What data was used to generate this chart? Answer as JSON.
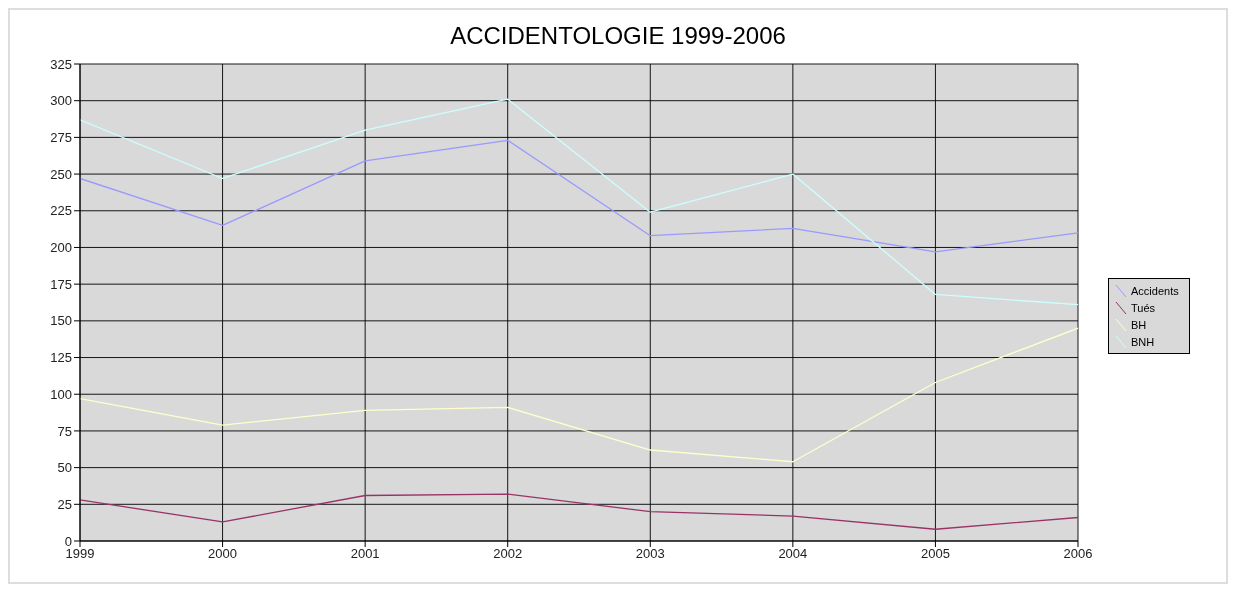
{
  "chart_data": {
    "type": "line",
    "title": "ACCIDENTOLOGIE 1999-2006",
    "x": [
      1999,
      2000,
      2001,
      2002,
      2003,
      2004,
      2005,
      2006
    ],
    "series": [
      {
        "name": "Accidents",
        "color": "#9999ff",
        "values": [
          247,
          215,
          259,
          273,
          208,
          213,
          197,
          210
        ]
      },
      {
        "name": "Tués",
        "color": "#993366",
        "values": [
          28,
          13,
          31,
          32,
          20,
          17,
          8,
          16
        ]
      },
      {
        "name": "BH",
        "color": "#ffffcc",
        "values": [
          97,
          79,
          89,
          91,
          62,
          54,
          108,
          145
        ]
      },
      {
        "name": "BNH",
        "color": "#ccffff",
        "values": [
          287,
          247,
          280,
          301,
          224,
          250,
          168,
          161
        ]
      }
    ],
    "xlim": [
      1999,
      2006
    ],
    "xticks": [
      1999,
      2000,
      2001,
      2002,
      2003,
      2004,
      2005,
      2006
    ],
    "ylim": [
      0,
      325
    ],
    "yticks": [
      0,
      25,
      50,
      75,
      100,
      125,
      150,
      175,
      200,
      225,
      250,
      275,
      300,
      325
    ],
    "grid": true,
    "legend": "right",
    "marker": "none",
    "line_style": "solid"
  }
}
